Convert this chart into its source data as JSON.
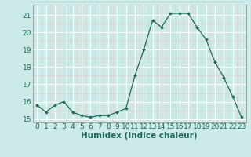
{
  "x": [
    0,
    1,
    2,
    3,
    4,
    5,
    6,
    7,
    8,
    9,
    10,
    11,
    12,
    13,
    14,
    15,
    16,
    17,
    18,
    19,
    20,
    21,
    22,
    23
  ],
  "y": [
    15.8,
    15.4,
    15.8,
    16.0,
    15.4,
    15.2,
    15.1,
    15.2,
    15.2,
    15.4,
    15.6,
    17.5,
    19.0,
    20.7,
    20.3,
    21.1,
    21.1,
    21.1,
    20.3,
    19.6,
    18.3,
    17.4,
    16.3,
    15.1
  ],
  "line_color": "#1a6b5a",
  "marker": "D",
  "marker_size": 2.0,
  "bg_color": "#cceae7",
  "grid_color": "#ffffff",
  "grid_minor_color": "#e8f8f8",
  "xlabel": "Humidex (Indice chaleur)",
  "ylim": [
    14.8,
    21.6
  ],
  "xlim": [
    -0.5,
    23.5
  ],
  "yticks": [
    15,
    16,
    17,
    18,
    19,
    20,
    21
  ],
  "xticks": [
    0,
    1,
    2,
    3,
    4,
    5,
    6,
    7,
    8,
    9,
    10,
    11,
    12,
    13,
    14,
    15,
    16,
    17,
    18,
    19,
    20,
    21,
    22,
    23
  ],
  "tick_fontsize": 6.5,
  "xlabel_fontsize": 7.5
}
